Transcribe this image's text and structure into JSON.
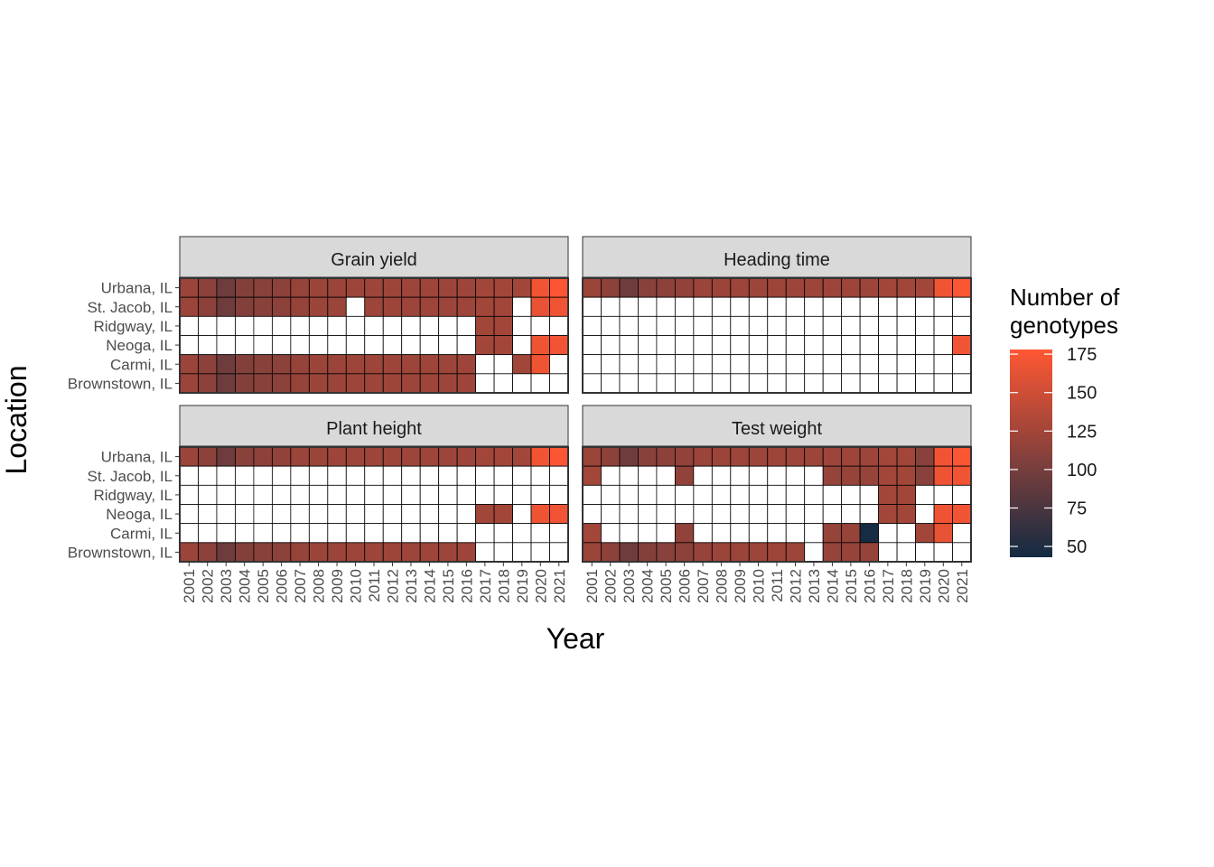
{
  "chart_data": {
    "type": "heatmap",
    "xlabel": "Year",
    "ylabel": "Location",
    "x": [
      "2001",
      "2002",
      "2003",
      "2004",
      "2005",
      "2006",
      "2007",
      "2008",
      "2009",
      "2010",
      "2011",
      "2012",
      "2013",
      "2014",
      "2015",
      "2016",
      "2017",
      "2018",
      "2019",
      "2020",
      "2021"
    ],
    "y": [
      "Urbana, IL",
      "St. Jacob, IL",
      "Ridgway, IL",
      "Neoga, IL",
      "Carmi, IL",
      "Brownstown, IL"
    ],
    "legend": {
      "title_line1": "Number of",
      "title_line2": "genotypes",
      "ticks": [
        "50",
        "75",
        "100",
        "125",
        "150",
        "175"
      ],
      "tick_values": [
        50,
        75,
        100,
        125,
        150,
        175
      ],
      "range": [
        43,
        178
      ],
      "low_color": "#132B43",
      "high_color": "#FF5733",
      "placement": "right"
    },
    "panels": [
      {
        "name": "Grain yield",
        "rows": [
          [
            120,
            112,
            95,
            107,
            110,
            112,
            118,
            120,
            120,
            122,
            122,
            122,
            122,
            122,
            122,
            122,
            125,
            125,
            125,
            170,
            175
          ],
          [
            120,
            112,
            95,
            107,
            110,
            112,
            118,
            120,
            120,
            null,
            122,
            122,
            122,
            122,
            122,
            122,
            125,
            125,
            null,
            165,
            170
          ],
          [
            null,
            null,
            null,
            null,
            null,
            null,
            null,
            null,
            null,
            null,
            null,
            null,
            null,
            null,
            null,
            null,
            125,
            125,
            null,
            null,
            null
          ],
          [
            null,
            null,
            null,
            null,
            null,
            null,
            null,
            null,
            null,
            null,
            null,
            null,
            null,
            null,
            null,
            null,
            125,
            125,
            null,
            168,
            170
          ],
          [
            120,
            112,
            95,
            107,
            110,
            112,
            118,
            120,
            120,
            122,
            122,
            122,
            122,
            122,
            122,
            122,
            null,
            null,
            125,
            168,
            null
          ],
          [
            120,
            112,
            95,
            107,
            110,
            112,
            118,
            120,
            120,
            122,
            122,
            122,
            122,
            122,
            122,
            122,
            null,
            null,
            null,
            null,
            null
          ]
        ]
      },
      {
        "name": "Heading time",
        "rows": [
          [
            120,
            112,
            95,
            110,
            112,
            115,
            120,
            120,
            122,
            122,
            122,
            122,
            122,
            122,
            122,
            122,
            125,
            125,
            125,
            170,
            175
          ],
          [
            null,
            null,
            null,
            null,
            null,
            null,
            null,
            null,
            null,
            null,
            null,
            null,
            null,
            null,
            null,
            null,
            null,
            null,
            null,
            null,
            null
          ],
          [
            null,
            null,
            null,
            null,
            null,
            null,
            null,
            null,
            null,
            null,
            null,
            null,
            null,
            null,
            null,
            null,
            null,
            null,
            null,
            null,
            null
          ],
          [
            null,
            null,
            null,
            null,
            null,
            null,
            null,
            null,
            null,
            null,
            null,
            null,
            null,
            null,
            null,
            null,
            null,
            null,
            null,
            null,
            170
          ],
          [
            null,
            null,
            null,
            null,
            null,
            null,
            null,
            null,
            null,
            null,
            null,
            null,
            null,
            null,
            null,
            null,
            null,
            null,
            null,
            null,
            null
          ],
          [
            null,
            null,
            null,
            null,
            null,
            null,
            null,
            null,
            null,
            null,
            null,
            null,
            null,
            null,
            null,
            null,
            null,
            null,
            null,
            null,
            null
          ]
        ]
      },
      {
        "name": "Plant height",
        "rows": [
          [
            120,
            112,
            95,
            110,
            112,
            115,
            120,
            120,
            122,
            122,
            122,
            122,
            122,
            122,
            122,
            122,
            125,
            125,
            125,
            170,
            175
          ],
          [
            null,
            null,
            null,
            null,
            null,
            null,
            null,
            null,
            null,
            null,
            null,
            null,
            null,
            null,
            null,
            null,
            null,
            null,
            null,
            null,
            null
          ],
          [
            null,
            null,
            null,
            null,
            null,
            null,
            null,
            null,
            null,
            null,
            null,
            null,
            null,
            null,
            null,
            null,
            null,
            null,
            null,
            null,
            null
          ],
          [
            null,
            null,
            null,
            null,
            null,
            null,
            null,
            null,
            null,
            null,
            null,
            null,
            null,
            null,
            null,
            null,
            125,
            125,
            null,
            168,
            170
          ],
          [
            null,
            null,
            null,
            null,
            null,
            null,
            null,
            null,
            null,
            null,
            null,
            null,
            null,
            null,
            null,
            null,
            null,
            null,
            null,
            null,
            null
          ],
          [
            120,
            112,
            95,
            107,
            110,
            112,
            118,
            120,
            120,
            122,
            122,
            122,
            122,
            122,
            122,
            122,
            null,
            null,
            null,
            null,
            null
          ]
        ]
      },
      {
        "name": "Test weight",
        "rows": [
          [
            120,
            112,
            95,
            110,
            112,
            115,
            120,
            120,
            122,
            122,
            122,
            122,
            122,
            122,
            122,
            122,
            125,
            125,
            110,
            170,
            175
          ],
          [
            125,
            null,
            null,
            null,
            null,
            115,
            null,
            null,
            null,
            null,
            null,
            null,
            null,
            118,
            118,
            118,
            125,
            125,
            110,
            168,
            170
          ],
          [
            null,
            null,
            null,
            null,
            null,
            null,
            null,
            null,
            null,
            null,
            null,
            null,
            null,
            null,
            null,
            null,
            125,
            125,
            null,
            null,
            null
          ],
          [
            null,
            null,
            null,
            null,
            null,
            null,
            null,
            null,
            null,
            null,
            null,
            null,
            null,
            null,
            null,
            null,
            125,
            125,
            null,
            168,
            170
          ],
          [
            125,
            null,
            null,
            null,
            null,
            115,
            null,
            null,
            null,
            null,
            null,
            null,
            null,
            118,
            118,
            45,
            null,
            null,
            125,
            165,
            null
          ],
          [
            120,
            112,
            95,
            107,
            110,
            112,
            118,
            120,
            120,
            122,
            122,
            122,
            null,
            118,
            118,
            118,
            null,
            null,
            null,
            null,
            null
          ]
        ]
      }
    ]
  }
}
